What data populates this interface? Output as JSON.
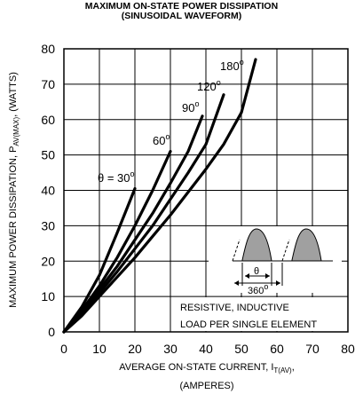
{
  "chart_data": {
    "type": "line",
    "title": "MAXIMUM ON-STATE POWER DISSIPATION",
    "subtitle": "(SINUSOIDAL WAVEFORM)",
    "xlabel_main": "AVERAGE ON-STATE  CURRENT, I",
    "xlabel_sub": "T(AV)",
    "xlabel_after": ",",
    "xlabel_line2": "(AMPERES)",
    "ylabel_main": "MAXIMUM POWER DISSIPATION, P",
    "ylabel_sub": "AV(MAX)",
    "ylabel_after": ", (WATTS)",
    "xlim": [
      0,
      80
    ],
    "ylim": [
      0,
      80
    ],
    "xticks": [
      "0",
      "10",
      "20",
      "30",
      "40",
      "50",
      "60",
      "70",
      "80"
    ],
    "yticks": [
      "0",
      "10",
      "20",
      "30",
      "40",
      "50",
      "60",
      "70",
      "80"
    ],
    "grid": true,
    "series": [
      {
        "name": "θ = 30",
        "x": [
          0,
          5,
          10,
          15,
          20
        ],
        "y": [
          0,
          7,
          16,
          28,
          40.5
        ]
      },
      {
        "name": "60",
        "x": [
          0,
          5,
          10,
          15,
          20,
          25,
          30
        ],
        "y": [
          0,
          6,
          13,
          21,
          30,
          40,
          51
        ]
      },
      {
        "name": "90",
        "x": [
          0,
          5,
          10,
          15,
          20,
          25,
          30,
          35,
          39
        ],
        "y": [
          0,
          5.5,
          12,
          18.5,
          26,
          33.5,
          42,
          51,
          61
        ]
      },
      {
        "name": "120",
        "x": [
          0,
          5,
          10,
          15,
          20,
          25,
          30,
          35,
          40,
          45
        ],
        "y": [
          0,
          5,
          11,
          17,
          23.5,
          30,
          37.5,
          45,
          53,
          67
        ]
      },
      {
        "name": "180",
        "x": [
          0,
          5,
          10,
          15,
          20,
          25,
          30,
          35,
          40,
          45,
          50,
          54
        ],
        "y": [
          0,
          4.5,
          10,
          15.5,
          21,
          27,
          33,
          39.5,
          46,
          53,
          62,
          77
        ]
      }
    ],
    "annotations": {
      "theta_label": "θ",
      "period_label": "360",
      "degree_sup": "o",
      "note_line1": "RESISTIVE, INDUCTIVE",
      "note_line2": "LOAD PER SINGLE ELEMENT"
    }
  }
}
